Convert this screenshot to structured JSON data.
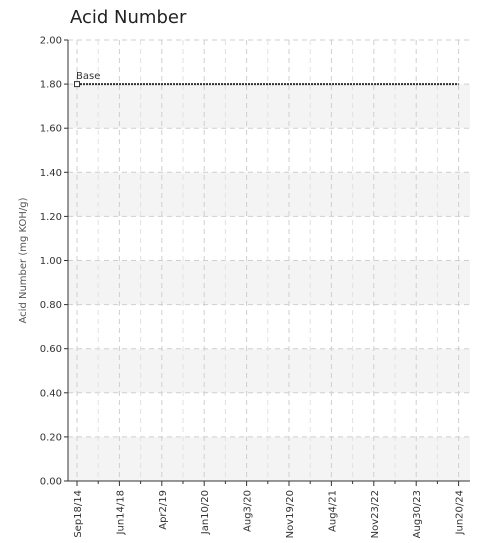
{
  "chart_data": {
    "type": "line",
    "title": "Acid Number",
    "xlabel": "",
    "ylabel": "Acid Number (mg KOH/g)",
    "ylim": [
      0,
      2
    ],
    "y_ticks": [
      "0.00",
      "0.20",
      "0.40",
      "0.60",
      "0.80",
      "1.00",
      "1.20",
      "1.40",
      "1.60",
      "1.80",
      "2.00"
    ],
    "x_ticks": [
      "Sep18/14",
      "Jun14/18",
      "Apr2/19",
      "Jan10/20",
      "Aug3/20",
      "Nov19/20",
      "Aug4/21",
      "Nov23/22",
      "Aug30/23",
      "Jun20/24"
    ],
    "grid": true,
    "series": [
      {
        "name": "Base",
        "color": "#333333",
        "x": [
          "Sep18/14",
          "Jun20/24"
        ],
        "values": [
          1.8,
          1.8
        ]
      }
    ]
  }
}
